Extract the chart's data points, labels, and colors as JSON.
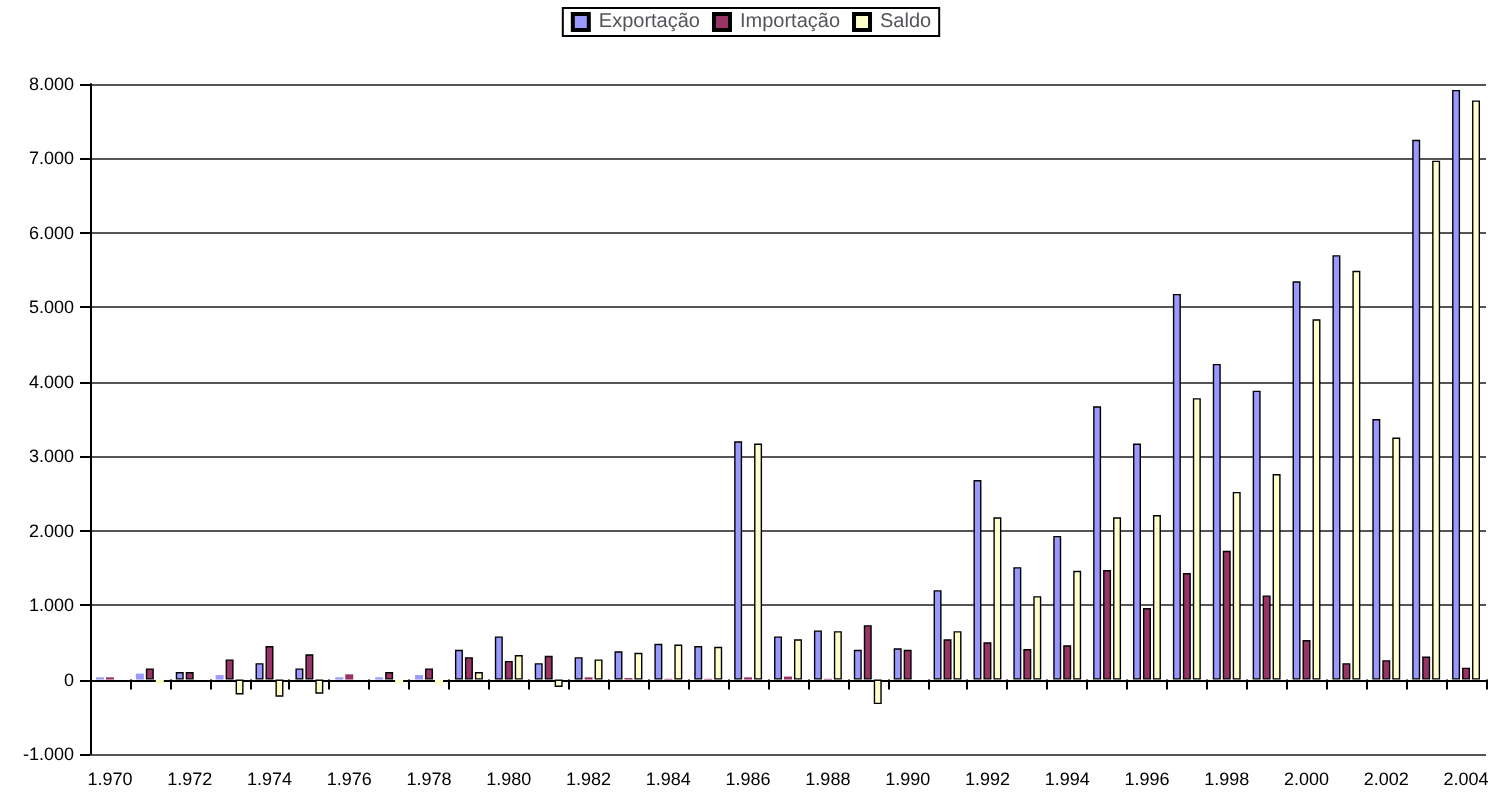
{
  "chart_data": {
    "type": "bar",
    "categories": [
      "1.970",
      null,
      "1.972",
      null,
      "1.974",
      null,
      "1.976",
      null,
      "1.978",
      null,
      "1.980",
      null,
      "1.982",
      null,
      "1.984",
      null,
      "1.986",
      null,
      "1.988",
      null,
      "1.990",
      null,
      "1.992",
      null,
      "1.994",
      null,
      "1.996",
      null,
      "1.998",
      null,
      "2.000",
      null,
      "2.002",
      null,
      "2.004"
    ],
    "series": [
      {
        "name": "Exportação",
        "color": "#9999ff",
        "values": [
          30,
          80,
          100,
          60,
          220,
          150,
          30,
          30,
          60,
          400,
          580,
          220,
          300,
          380,
          480,
          450,
          3200,
          580,
          660,
          400,
          420,
          1200,
          2680,
          1510,
          1930,
          3670,
          3170,
          5180,
          4240,
          3880,
          5350,
          5700,
          3500,
          7250,
          7920
        ]
      },
      {
        "name": "Importação",
        "color": "#993366",
        "values": [
          30,
          150,
          100,
          270,
          450,
          340,
          70,
          100,
          150,
          300,
          250,
          320,
          30,
          20,
          10,
          10,
          30,
          40,
          10,
          730,
          400,
          540,
          500,
          410,
          460,
          1470,
          960,
          1430,
          1730,
          1130,
          530,
          220,
          260,
          310,
          160
        ]
      },
      {
        "name": "Saldo",
        "color": "#ffffcc",
        "values": [
          0,
          -70,
          0,
          -200,
          -230,
          -190,
          null,
          -60,
          -80,
          100,
          330,
          -100,
          270,
          360,
          470,
          440,
          3170,
          540,
          650,
          -330,
          null,
          650,
          2180,
          1120,
          1460,
          2180,
          2210,
          3780,
          2520,
          2760,
          4840,
          5490,
          3250,
          6970,
          7780
        ]
      }
    ],
    "ylim": [
      -1000,
      8000
    ],
    "yticks": [
      {
        "value": -1000,
        "label": "-1.000"
      },
      0,
      {
        "value": 1000,
        "label": "1.000"
      },
      {
        "value": 2000,
        "label": "2.000"
      },
      {
        "value": 3000,
        "label": "3.000"
      },
      {
        "value": 4000,
        "label": "4.000"
      },
      {
        "value": 5000,
        "label": "5.000"
      },
      {
        "value": 6000,
        "label": "6.000"
      },
      {
        "value": 7000,
        "label": "7.000"
      },
      {
        "value": 8000,
        "label": "8.000"
      }
    ],
    "grid": "y",
    "legend": "top"
  }
}
